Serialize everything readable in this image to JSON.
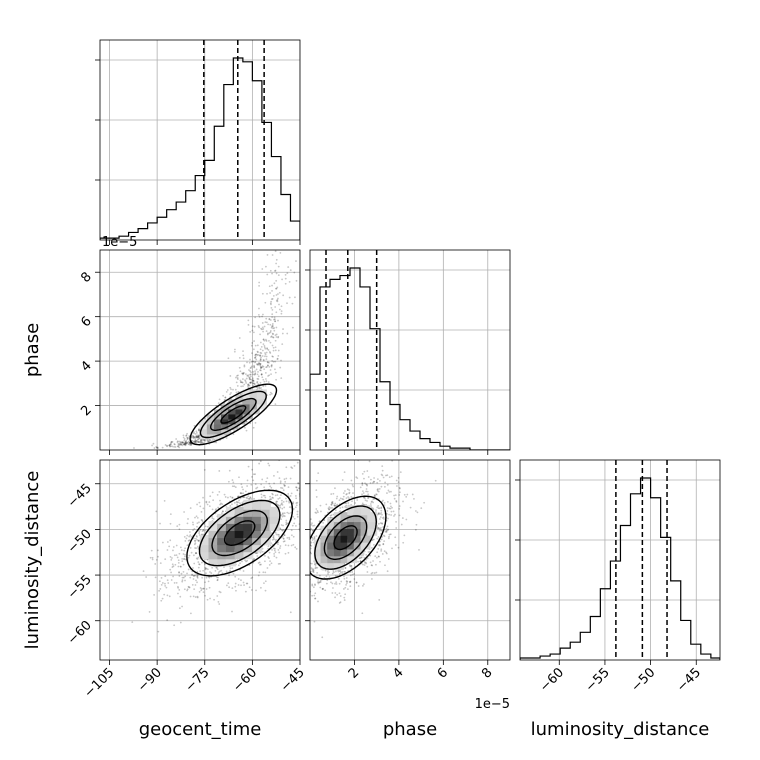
{
  "chart_data": {
    "type": "corner",
    "parameters": [
      "geocent_time",
      "phase",
      "luminosity_distance"
    ],
    "axis_labels": {
      "geocent_time": "geocent_time",
      "phase": "phase",
      "luminosity_distance": "luminosity_distance"
    },
    "offset_texts": {
      "phase_y": "1e−5",
      "phase_x": "1e−5"
    },
    "ticks": {
      "geocent_time": {
        "values": [
          -105,
          -90,
          -75,
          -60,
          -45
        ],
        "labels": [
          "−105",
          "−90",
          "−75",
          "−60",
          "−45"
        ]
      },
      "phase": {
        "values": [
          2,
          4,
          6,
          8
        ],
        "labels": [
          "2",
          "4",
          "6",
          "8"
        ]
      },
      "luminosity_distance": {
        "values": [
          -60,
          -55,
          -50,
          -45
        ],
        "labels": [
          "−60",
          "−55",
          "−50",
          "−45"
        ]
      }
    },
    "ranges": {
      "geocent_time": [
        -108,
        -45
      ],
      "phase": [
        0,
        9
      ],
      "luminosity_distance": [
        -64.3,
        -42.4
      ]
    },
    "histograms": {
      "geocent_time": {
        "bin_edges": [
          -108,
          -105,
          -102,
          -99,
          -96,
          -93,
          -90,
          -87,
          -84,
          -81,
          -78,
          -75,
          -72,
          -69,
          -66,
          -63,
          -60,
          -57,
          -54,
          -51,
          -48,
          -45
        ],
        "counts": [
          1,
          1,
          2,
          4,
          6,
          9,
          12,
          16,
          20,
          26,
          34,
          42,
          60,
          82,
          96,
          94,
          84,
          62,
          44,
          24,
          10
        ],
        "quantiles": [
          -75.3,
          -64.6,
          -56.3
        ]
      },
      "phase": {
        "bin_edges": [
          0,
          0.45,
          0.9,
          1.35,
          1.8,
          2.25,
          2.7,
          3.15,
          3.6,
          4.05,
          4.5,
          4.95,
          5.4,
          5.85,
          6.3,
          6.75,
          7.2,
          7.65,
          8.1,
          8.55,
          9.0
        ],
        "counts": [
          40,
          86,
          90,
          92,
          96,
          86,
          64,
          36,
          24,
          16,
          10,
          6,
          4,
          2,
          1,
          1,
          0,
          0,
          0,
          0
        ],
        "quantiles": [
          0.72,
          1.7,
          3.0
        ]
      },
      "luminosity_distance": {
        "bin_edges": [
          -64.3,
          -63.2,
          -62.1,
          -61.0,
          -59.9,
          -58.8,
          -57.7,
          -56.6,
          -55.5,
          -54.4,
          -53.3,
          -52.2,
          -51.1,
          -50.0,
          -48.9,
          -47.8,
          -46.7,
          -45.6,
          -44.5,
          -43.4,
          -42.4
        ],
        "counts": [
          1,
          1,
          2,
          3,
          6,
          9,
          14,
          22,
          36,
          50,
          68,
          84,
          92,
          82,
          62,
          40,
          20,
          8,
          3,
          1
        ],
        "quantiles": [
          -53.8,
          -50.9,
          -48.2
        ]
      }
    },
    "pairs": [
      {
        "x": "geocent_time",
        "y": "phase",
        "center": [
          -66,
          1.6
        ],
        "spread": [
          9,
          0.9
        ],
        "correlation": 0.8
      },
      {
        "x": "geocent_time",
        "y": "luminosity_distance",
        "center": [
          -64,
          -50.4
        ],
        "spread": [
          11,
          3.1
        ],
        "correlation": 0.55
      },
      {
        "x": "phase",
        "y": "luminosity_distance",
        "center": [
          1.6,
          -50.9
        ],
        "spread": [
          1.2,
          3.0
        ],
        "correlation": 0.5
      }
    ]
  }
}
